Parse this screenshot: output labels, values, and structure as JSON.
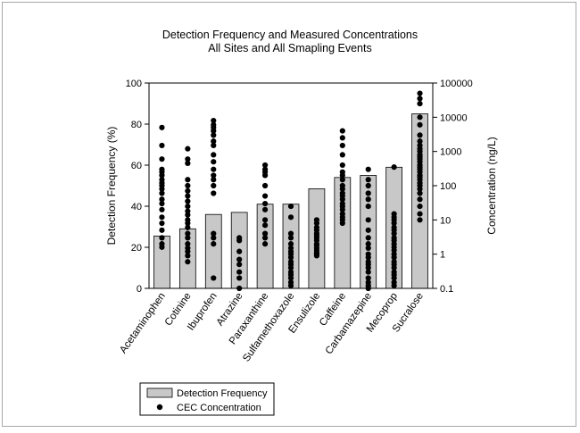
{
  "chart_data": {
    "type": "bar",
    "title": "Detection Frequency and Measured Concentrations",
    "subtitle": "All Sites and All Smapling Events",
    "ylabel_left": "Detection Frequency (%)",
    "ylabel_right": "Concentration (ng/L)",
    "ylim_left": [
      0,
      100
    ],
    "ylim_right": [
      0.1,
      100000
    ],
    "right_scale": "log",
    "left_ticks": [
      "0",
      "20",
      "40",
      "60",
      "80",
      "100"
    ],
    "right_ticks": [
      "0.1",
      "1",
      "10",
      "100",
      "1000",
      "10000",
      "100000"
    ],
    "categories": [
      "Acetaminophen",
      "Cotinine",
      "Ibuprofen",
      "Atrazine",
      "Paraxanthine",
      "Sulfamethoxazole",
      "Ensulizole",
      "Caffeine",
      "Carbamazepine",
      "Mecoprop",
      "Sucralose"
    ],
    "series": [
      {
        "name": "Detection Frequency",
        "kind": "bar",
        "axis": "left",
        "color": "#c8c8c8",
        "values": [
          25.5,
          29,
          36,
          37,
          41,
          41,
          48.5,
          54,
          55,
          59,
          85
        ]
      },
      {
        "name": "CEC Concentration",
        "kind": "scatter",
        "axis": "right",
        "color": "#000000",
        "points": [
          [
            0,
            5000
          ],
          [
            0,
            1500
          ],
          [
            0,
            600
          ],
          [
            0,
            300
          ],
          [
            0,
            250
          ],
          [
            0,
            200
          ],
          [
            0,
            150
          ],
          [
            0,
            120
          ],
          [
            0,
            100
          ],
          [
            0,
            80
          ],
          [
            0,
            60
          ],
          [
            0,
            40
          ],
          [
            0,
            30
          ],
          [
            0,
            20
          ],
          [
            0,
            12
          ],
          [
            0,
            8
          ],
          [
            0,
            5
          ],
          [
            0,
            3
          ],
          [
            0,
            2
          ],
          [
            0,
            1.6
          ],
          [
            1,
            1200
          ],
          [
            1,
            600
          ],
          [
            1,
            450
          ],
          [
            1,
            150
          ],
          [
            1,
            100
          ],
          [
            1,
            70
          ],
          [
            1,
            50
          ],
          [
            1,
            35
          ],
          [
            1,
            25
          ],
          [
            1,
            18
          ],
          [
            1,
            14
          ],
          [
            1,
            10
          ],
          [
            1,
            8
          ],
          [
            1,
            6
          ],
          [
            1,
            4
          ],
          [
            1,
            3
          ],
          [
            1,
            2
          ],
          [
            1,
            1.5
          ],
          [
            1,
            1.2
          ],
          [
            1,
            0.9
          ],
          [
            1,
            0.6
          ],
          [
            2,
            8000
          ],
          [
            2,
            6000
          ],
          [
            2,
            5000
          ],
          [
            2,
            4000
          ],
          [
            2,
            3000
          ],
          [
            2,
            2000
          ],
          [
            2,
            1500
          ],
          [
            2,
            800
          ],
          [
            2,
            500
          ],
          [
            2,
            300
          ],
          [
            2,
            200
          ],
          [
            2,
            150
          ],
          [
            2,
            100
          ],
          [
            2,
            60
          ],
          [
            2,
            4
          ],
          [
            2,
            3
          ],
          [
            2,
            2
          ],
          [
            2,
            0.2
          ],
          [
            3,
            3
          ],
          [
            3,
            2.5
          ],
          [
            3,
            1.2
          ],
          [
            3,
            0.7
          ],
          [
            3,
            0.5
          ],
          [
            3,
            0.3
          ],
          [
            3,
            0.2
          ],
          [
            3,
            0.1
          ],
          [
            4,
            400
          ],
          [
            4,
            300
          ],
          [
            4,
            250
          ],
          [
            4,
            200
          ],
          [
            4,
            100
          ],
          [
            4,
            50
          ],
          [
            4,
            30
          ],
          [
            4,
            20
          ],
          [
            4,
            10
          ],
          [
            4,
            7
          ],
          [
            4,
            4
          ],
          [
            4,
            3
          ],
          [
            4,
            2
          ],
          [
            5,
            25
          ],
          [
            5,
            12
          ],
          [
            5,
            4
          ],
          [
            5,
            3
          ],
          [
            5,
            2
          ],
          [
            5,
            1.5
          ],
          [
            5,
            1.2
          ],
          [
            5,
            1
          ],
          [
            5,
            0.8
          ],
          [
            5,
            0.6
          ],
          [
            5,
            0.5
          ],
          [
            5,
            0.4
          ],
          [
            5,
            0.3
          ],
          [
            5,
            0.25
          ],
          [
            5,
            0.2
          ],
          [
            5,
            0.15
          ],
          [
            5,
            0.12
          ],
          [
            6,
            10
          ],
          [
            6,
            8
          ],
          [
            6,
            6
          ],
          [
            6,
            5
          ],
          [
            6,
            4
          ],
          [
            6,
            3.5
          ],
          [
            6,
            3
          ],
          [
            6,
            2.5
          ],
          [
            6,
            2
          ],
          [
            6,
            1.8
          ],
          [
            6,
            1.5
          ],
          [
            6,
            1.3
          ],
          [
            6,
            1.1
          ],
          [
            6,
            1
          ],
          [
            6,
            0.9
          ],
          [
            7,
            4000
          ],
          [
            7,
            2500
          ],
          [
            7,
            1500
          ],
          [
            7,
            800
          ],
          [
            7,
            400
          ],
          [
            7,
            250
          ],
          [
            7,
            200
          ],
          [
            7,
            150
          ],
          [
            7,
            100
          ],
          [
            7,
            80
          ],
          [
            7,
            60
          ],
          [
            7,
            50
          ],
          [
            7,
            40
          ],
          [
            7,
            30
          ],
          [
            7,
            25
          ],
          [
            7,
            20
          ],
          [
            7,
            15
          ],
          [
            7,
            12
          ],
          [
            7,
            10
          ],
          [
            7,
            8
          ],
          [
            8,
            300
          ],
          [
            8,
            150
          ],
          [
            8,
            100
          ],
          [
            8,
            60
          ],
          [
            8,
            40
          ],
          [
            8,
            25
          ],
          [
            8,
            10
          ],
          [
            8,
            5
          ],
          [
            8,
            3
          ],
          [
            8,
            2
          ],
          [
            8,
            1.5
          ],
          [
            8,
            1
          ],
          [
            8,
            0.8
          ],
          [
            8,
            0.6
          ],
          [
            8,
            0.5
          ],
          [
            8,
            0.4
          ],
          [
            8,
            0.3
          ],
          [
            8,
            0.2
          ],
          [
            8,
            0.15
          ],
          [
            8,
            0.12
          ],
          [
            8,
            0.1
          ],
          [
            9,
            350
          ],
          [
            9,
            15
          ],
          [
            9,
            12
          ],
          [
            9,
            10
          ],
          [
            9,
            8
          ],
          [
            9,
            6
          ],
          [
            9,
            5
          ],
          [
            9,
            4
          ],
          [
            9,
            3
          ],
          [
            9,
            2.5
          ],
          [
            9,
            2
          ],
          [
            9,
            1.6
          ],
          [
            9,
            1.3
          ],
          [
            9,
            1
          ],
          [
            9,
            0.8
          ],
          [
            9,
            0.6
          ],
          [
            9,
            0.5
          ],
          [
            9,
            0.4
          ],
          [
            9,
            0.3
          ],
          [
            9,
            0.25
          ],
          [
            9,
            0.2
          ],
          [
            9,
            0.15
          ],
          [
            9,
            0.12
          ],
          [
            10,
            50000
          ],
          [
            10,
            35000
          ],
          [
            10,
            25000
          ],
          [
            10,
            10000
          ],
          [
            10,
            6000
          ],
          [
            10,
            3000
          ],
          [
            10,
            2000
          ],
          [
            10,
            1500
          ],
          [
            10,
            1200
          ],
          [
            10,
            1000
          ],
          [
            10,
            800
          ],
          [
            10,
            700
          ],
          [
            10,
            600
          ],
          [
            10,
            500
          ],
          [
            10,
            400
          ],
          [
            10,
            350
          ],
          [
            10,
            300
          ],
          [
            10,
            250
          ],
          [
            10,
            200
          ],
          [
            10,
            180
          ],
          [
            10,
            150
          ],
          [
            10,
            120
          ],
          [
            10,
            100
          ],
          [
            10,
            80
          ],
          [
            10,
            60
          ],
          [
            10,
            40
          ],
          [
            10,
            25
          ],
          [
            10,
            15
          ],
          [
            10,
            10
          ]
        ]
      }
    ],
    "legend": {
      "position": "bottom-left",
      "items": [
        {
          "label": "Detection Frequency",
          "symbol": "bar"
        },
        {
          "label": "CEC Concentration",
          "symbol": "dot"
        }
      ]
    },
    "grid": false
  }
}
